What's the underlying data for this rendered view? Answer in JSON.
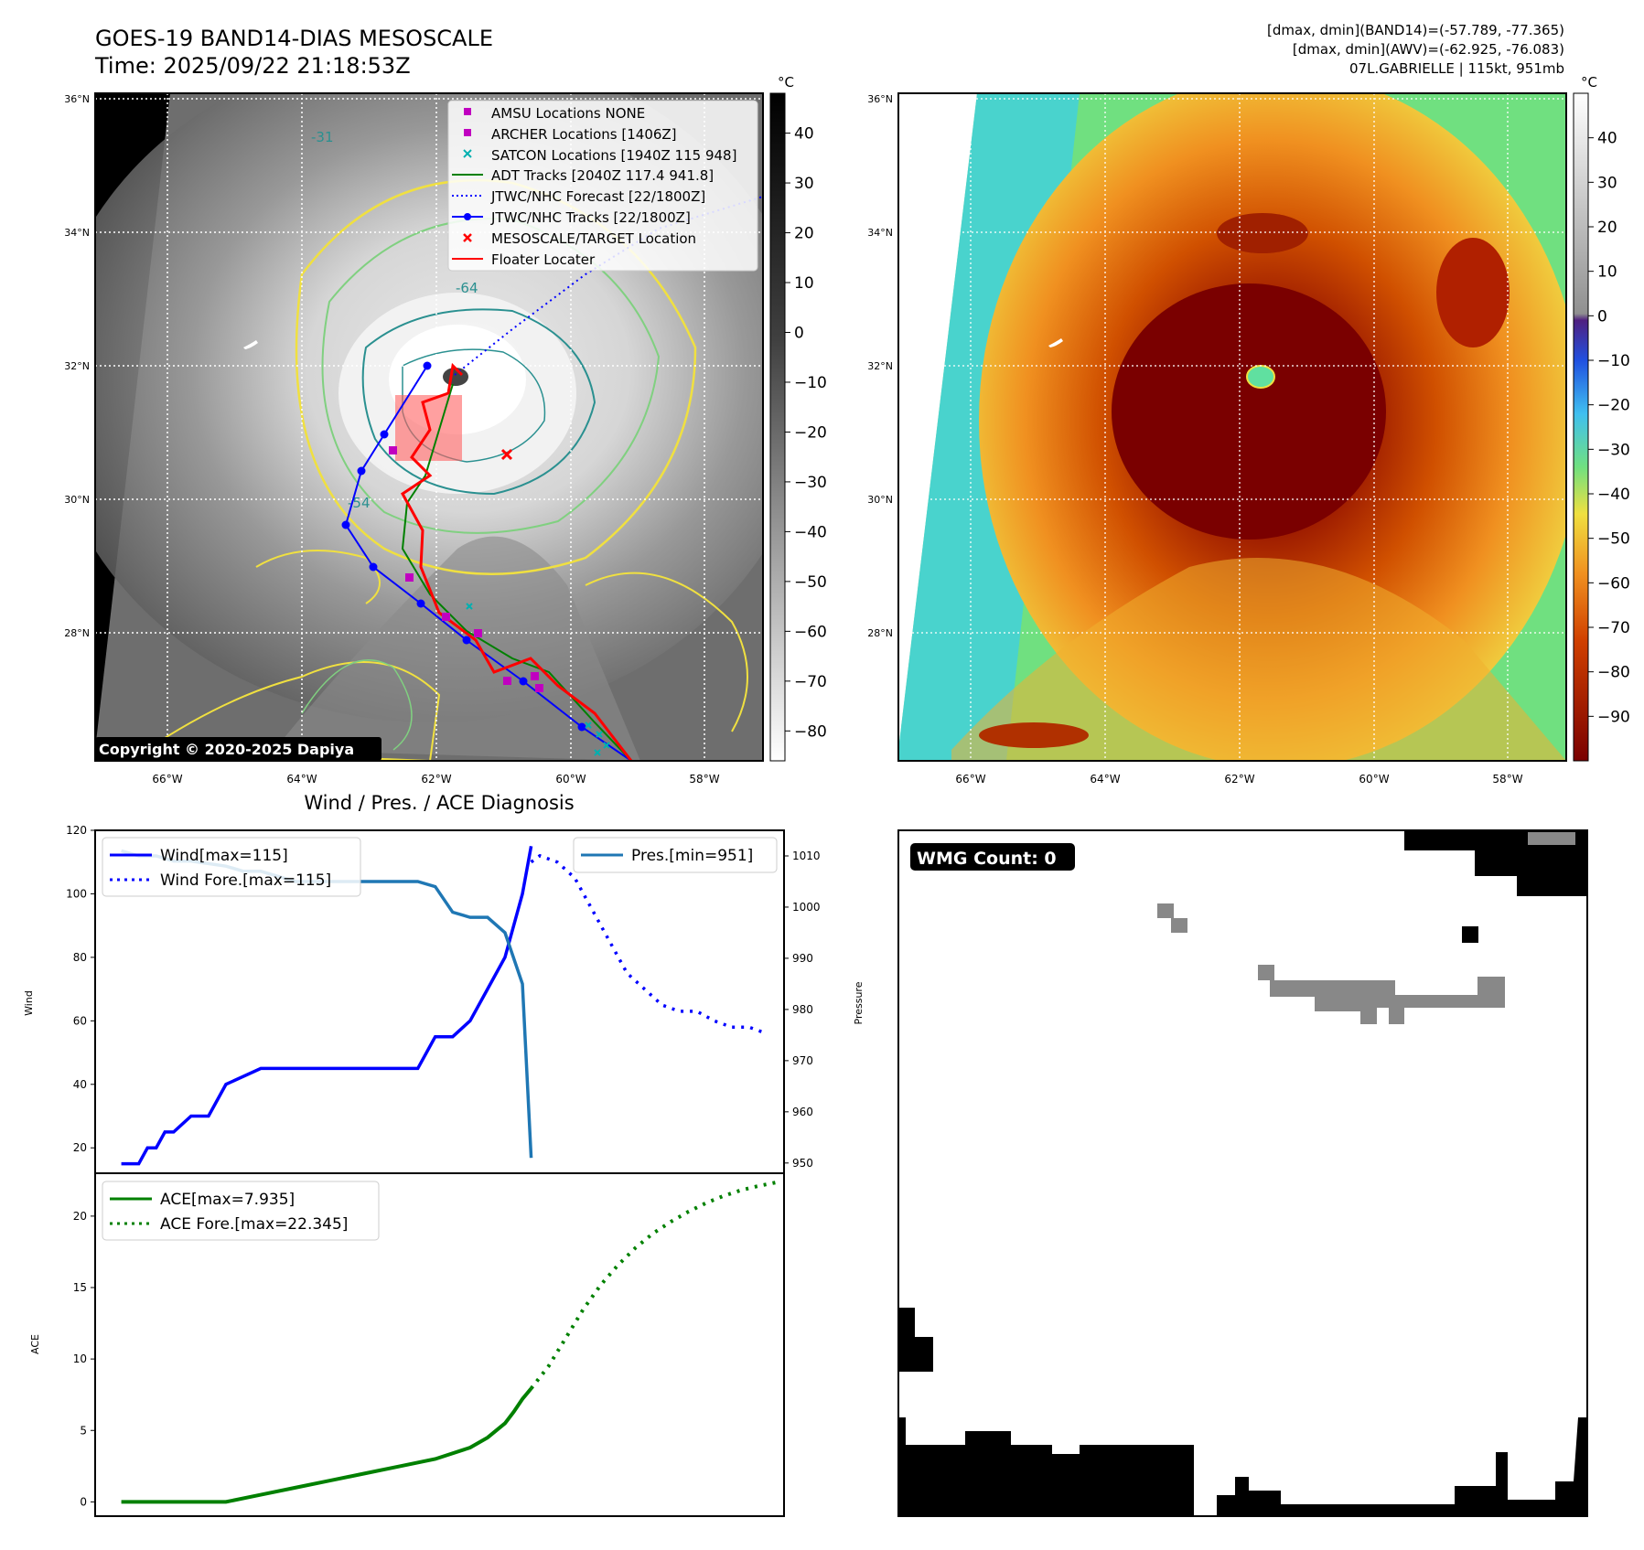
{
  "header": {
    "title_line1": "GOES-19 BAND14-DIAS MESOSCALE",
    "title_line2": "Time: 2025/09/22 21:18:53Z",
    "info_line1": "[dmax, dmin](BAND14)=(-57.789, -77.365)",
    "info_line2": "[dmax, dmin](AWV)=(-62.925, -76.083)",
    "info_line3": "07L.GABRIELLE | 115kt, 951mb"
  },
  "map": {
    "lat_labels": [
      "36°N",
      "34°N",
      "32°N",
      "30°N",
      "28°N"
    ],
    "lon_labels": [
      "66°W",
      "64°W",
      "62°W",
      "60°W",
      "58°W"
    ],
    "copyright": "Copyright © 2020-2025 Dapiya",
    "contour_labels": [
      "-31",
      "-54",
      "-64"
    ]
  },
  "colorbar_left": {
    "unit": "°C",
    "ticks": [
      "40",
      "30",
      "20",
      "10",
      "0",
      "−10",
      "−20",
      "−30",
      "−40",
      "−50",
      "−60",
      "−70",
      "−80"
    ]
  },
  "colorbar_right": {
    "unit": "°C",
    "ticks": [
      "40",
      "30",
      "20",
      "10",
      "0",
      "−10",
      "−20",
      "−30",
      "−40",
      "−50",
      "−60",
      "−70",
      "−80",
      "−90"
    ]
  },
  "legend_map": [
    {
      "label": "AMSU Locations NONE",
      "color": "#c000c0"
    },
    {
      "label": "ARCHER Locations [1406Z]",
      "color": "#c000c0"
    },
    {
      "label": "SATCON Locations [1940Z 115 948]",
      "color": "#00b0b0"
    },
    {
      "label": "ADT Tracks [2040Z 117.4 941.8]",
      "color": "#008000"
    },
    {
      "label": "JTWC/NHC Forecast [22/1800Z]",
      "color": "#0000ff"
    },
    {
      "label": "JTWC/NHC Tracks [22/1800Z]",
      "color": "#0000ff"
    },
    {
      "label": "MESOSCALE/TARGET Location",
      "color": "#ff0000"
    },
    {
      "label": "Floater Locater",
      "color": "#ff0000"
    }
  ],
  "diag_title": "Wind / Pres. / ACE Diagnosis",
  "wmg": {
    "label": "WMG Count: 0"
  },
  "chart_data": [
    {
      "type": "line",
      "title": "Wind / Pres. / ACE Diagnosis",
      "ylabel": "Wind",
      "y2label": "Pressure",
      "ylim": [
        12,
        120
      ],
      "y2lim": [
        948,
        1015
      ],
      "yticks": [
        "120",
        "100",
        "80",
        "60",
        "40",
        "20"
      ],
      "y2ticks": [
        "1010",
        "1000",
        "990",
        "980",
        "970",
        "960",
        "950"
      ],
      "legend_left": [
        "Wind[max=115]",
        "Wind Fore.[max=115]"
      ],
      "legend_right": [
        "Pres.[min=951]"
      ],
      "series": [
        {
          "name": "Wind[max=115]",
          "axis": "left",
          "style": "solid",
          "color": "#0000ff",
          "x": [
            0,
            1,
            1.5,
            2,
            2.5,
            3,
            4,
            4.5,
            5,
            6,
            8,
            9,
            10,
            12,
            17,
            18,
            18.5,
            19,
            20,
            21,
            22,
            23,
            23.5
          ],
          "y": [
            15,
            15,
            20,
            20,
            25,
            25,
            30,
            30,
            30,
            40,
            45,
            45,
            45,
            45,
            45,
            55,
            55,
            55,
            60,
            70,
            80,
            100,
            115
          ]
        },
        {
          "name": "Wind Fore.[max=115]",
          "axis": "left",
          "style": "dotted",
          "color": "#0000ff",
          "x": [
            23.5,
            24,
            25,
            26,
            27,
            28,
            29,
            30,
            31,
            32,
            33,
            34,
            35,
            36,
            37
          ],
          "y": [
            110,
            112,
            110,
            105,
            95,
            85,
            75,
            70,
            65,
            63,
            63,
            60,
            58,
            58,
            56
          ]
        },
        {
          "name": "Pres.[min=951]",
          "axis": "right",
          "style": "solid",
          "color": "#1f77b4",
          "x": [
            0,
            1,
            2,
            3,
            4,
            6,
            7,
            8,
            9,
            10,
            11,
            12,
            13,
            14,
            15,
            16,
            17,
            18,
            19,
            20,
            21,
            22,
            23,
            23.5
          ],
          "y": [
            1011,
            1010,
            1010,
            1009,
            1009,
            1008,
            1007,
            1007,
            1006,
            1005,
            1005,
            1005,
            1005,
            1005,
            1005,
            1005,
            1005,
            1004,
            999,
            998,
            998,
            995,
            985,
            951
          ]
        }
      ],
      "x_domain": [
        -1.5,
        38
      ]
    },
    {
      "type": "line",
      "ylabel": "ACE",
      "ylim": [
        -1,
        23
      ],
      "yticks": [
        "20",
        "15",
        "10",
        "5",
        "0"
      ],
      "legend": [
        "ACE[max=7.935]",
        "ACE Fore.[max=22.345]"
      ],
      "series": [
        {
          "name": "ACE[max=7.935]",
          "style": "solid",
          "color": "#008000",
          "x": [
            0,
            2,
            4,
            6,
            8,
            10,
            12,
            14,
            16,
            18,
            20,
            21,
            22,
            22.5,
            23,
            23.5
          ],
          "y": [
            0,
            0,
            0,
            0,
            0.5,
            1.0,
            1.5,
            2.0,
            2.5,
            3.0,
            3.8,
            4.5,
            5.5,
            6.3,
            7.2,
            7.935
          ]
        },
        {
          "name": "ACE Fore.[max=22.345]",
          "style": "dotted",
          "color": "#008000",
          "x": [
            23.5,
            24.5,
            25.5,
            26.5,
            27.5,
            28.5,
            29.5,
            30.5,
            31.5,
            32.5,
            33.5,
            34.5,
            35.5,
            36.5,
            37.5
          ],
          "y": [
            7.935,
            9.5,
            11.5,
            13.5,
            15.2,
            16.6,
            17.8,
            18.8,
            19.6,
            20.3,
            20.9,
            21.4,
            21.8,
            22.1,
            22.345
          ]
        }
      ],
      "x_domain": [
        -1.5,
        38
      ]
    }
  ]
}
